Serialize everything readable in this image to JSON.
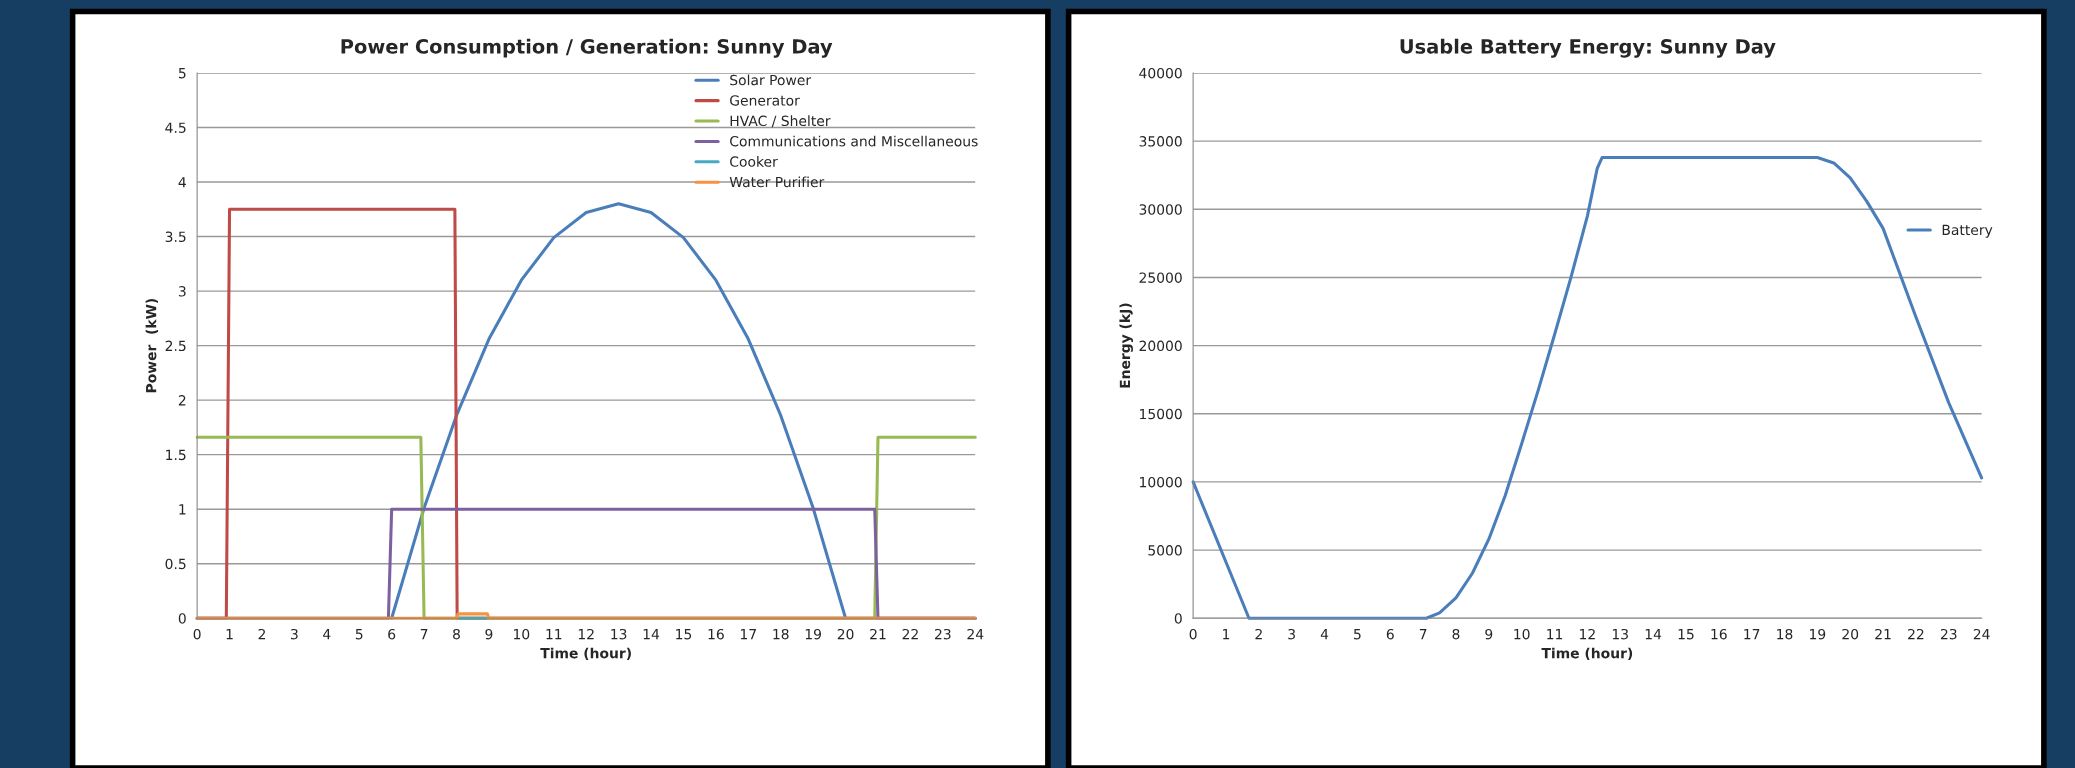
{
  "chart_data": [
    {
      "type": "line",
      "title": "Power Consumption / Generation: Sunny Day",
      "xlabel": "Time (hour)",
      "ylabel": "Power  (kW)",
      "xlim": [
        0,
        24
      ],
      "xticks": [
        0,
        1,
        2,
        3,
        4,
        5,
        6,
        7,
        8,
        9,
        10,
        11,
        12,
        13,
        14,
        15,
        16,
        17,
        18,
        19,
        20,
        21,
        22,
        23,
        24
      ],
      "ylim": [
        0,
        5
      ],
      "yticks": [
        0,
        0.5,
        1,
        1.5,
        2,
        2.5,
        3,
        3.5,
        4,
        4.5,
        5
      ],
      "grid": "y",
      "legend": "top right",
      "marker": "none",
      "line_style": "solid",
      "series": [
        {
          "name": "Solar Power",
          "color": "#4a7ebb",
          "x": [
            6,
            7,
            8,
            9,
            10,
            11,
            12,
            13,
            14,
            15,
            16,
            17,
            18,
            19,
            20
          ],
          "values": [
            0,
            1.01,
            1.86,
            2.56,
            3.1,
            3.49,
            3.72,
            3.8,
            3.72,
            3.49,
            3.1,
            2.56,
            1.86,
            1.01,
            0
          ]
        },
        {
          "name": "Generator",
          "color": "#be4b48",
          "x": [
            0,
            0.9,
            1,
            7.95,
            8.02,
            24
          ],
          "values": [
            0,
            0,
            3.75,
            3.75,
            0,
            0
          ]
        },
        {
          "name": "HVAC / Shelter",
          "color": "#98b954",
          "x": [
            0,
            6.9,
            7,
            20.9,
            21,
            24
          ],
          "values": [
            1.66,
            1.66,
            0,
            0,
            1.66,
            1.66
          ]
        },
        {
          "name": "Communications and Miscellaneous",
          "color": "#7d60a0",
          "x": [
            0,
            5.9,
            6,
            20.9,
            21,
            24
          ],
          "values": [
            0,
            0,
            1,
            1,
            0,
            0
          ]
        },
        {
          "name": "Cooker",
          "color": "#46aac5",
          "x": [
            8.1,
            8.9
          ],
          "values": [
            0,
            0
          ]
        },
        {
          "name": "Water Purifier",
          "color": "#f69240",
          "x": [
            0,
            8,
            8.05,
            8.95,
            9,
            24
          ],
          "values": [
            0,
            0,
            0.04,
            0.04,
            0,
            0
          ]
        }
      ]
    },
    {
      "type": "line",
      "title": "Usable Battery Energy: Sunny Day",
      "xlabel": "Time (hour)",
      "ylabel": "Energy (kJ)",
      "xlim": [
        0,
        24
      ],
      "xticks": [
        0,
        1,
        2,
        3,
        4,
        5,
        6,
        7,
        8,
        9,
        10,
        11,
        12,
        13,
        14,
        15,
        16,
        17,
        18,
        19,
        20,
        21,
        22,
        23,
        24
      ],
      "ylim": [
        0,
        40000
      ],
      "yticks": [
        0,
        5000,
        10000,
        15000,
        20000,
        25000,
        30000,
        35000,
        40000
      ],
      "grid": "y",
      "legend": "right",
      "marker": "none",
      "line_style": "solid",
      "series": [
        {
          "name": "Battery",
          "color": "#4a7ebb",
          "x": [
            0,
            1.7,
            7.1,
            7.5,
            8,
            8.5,
            9,
            9.5,
            10,
            10.5,
            11,
            11.5,
            12,
            12.3,
            12.45,
            19,
            19.5,
            20,
            20.5,
            21,
            22,
            23,
            24
          ],
          "values": [
            10000,
            0,
            0,
            400,
            1500,
            3300,
            5800,
            9000,
            12800,
            16700,
            20800,
            25000,
            29500,
            33000,
            33800,
            33800,
            33400,
            32300,
            30600,
            28600,
            22100,
            15800,
            10300
          ]
        }
      ]
    }
  ]
}
